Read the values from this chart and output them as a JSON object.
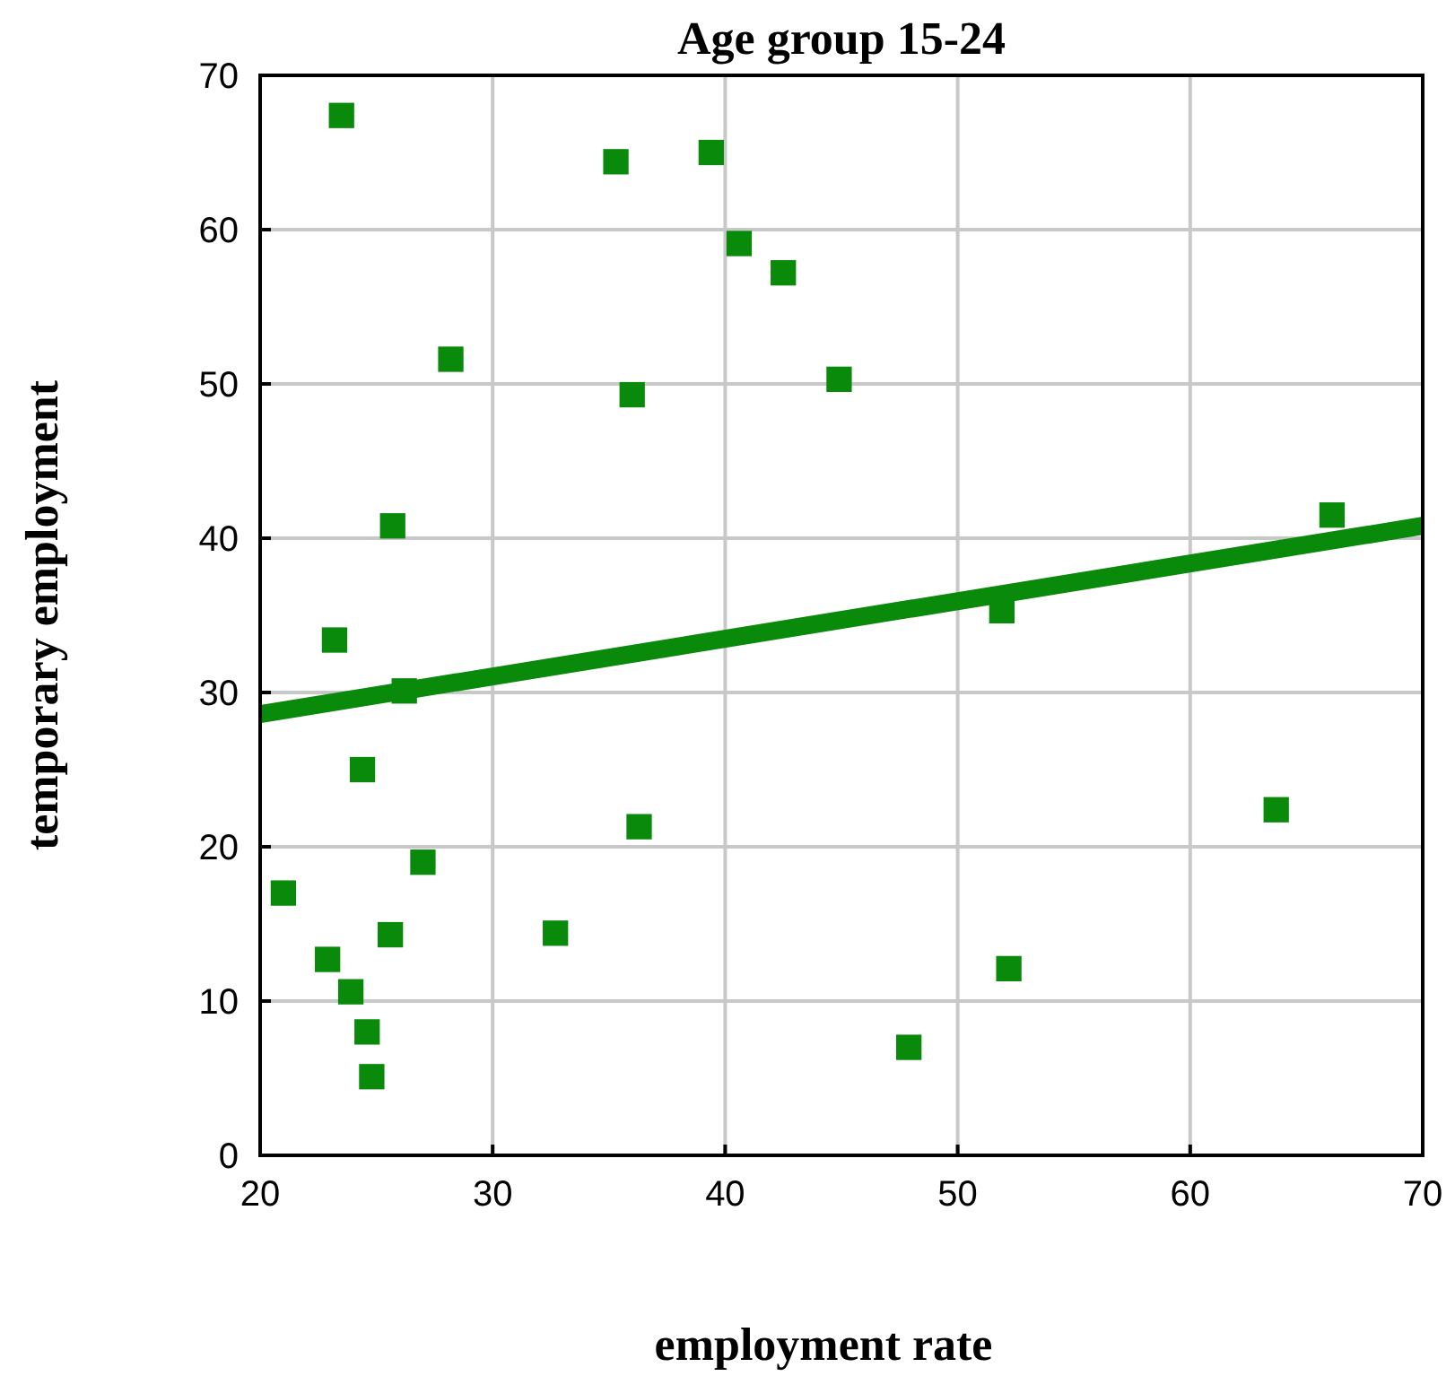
{
  "chart_data": {
    "type": "scatter",
    "title": "Age group 15-24",
    "xlabel": "employment rate",
    "ylabel": "temporary employment",
    "xlim": [
      20,
      70
    ],
    "ylim": [
      0,
      70
    ],
    "xticks": [
      20,
      30,
      40,
      50,
      60,
      70
    ],
    "yticks": [
      0,
      10,
      20,
      30,
      40,
      50,
      60,
      70
    ],
    "grid": true,
    "series": [
      {
        "marker": "square",
        "color": "#0a8a0a",
        "x": [
          21.0,
          22.9,
          23.2,
          23.5,
          23.9,
          24.4,
          24.6,
          24.8,
          25.6,
          25.7,
          26.2,
          27.0,
          28.2,
          32.7,
          35.3,
          36.0,
          36.3,
          39.4,
          40.6,
          42.5,
          44.9,
          47.9,
          51.9,
          52.2,
          63.7,
          66.1
        ],
        "values": [
          17.0,
          12.7,
          33.4,
          67.4,
          10.6,
          25.0,
          8.0,
          5.1,
          14.3,
          40.8,
          30.1,
          19.0,
          51.6,
          14.4,
          64.4,
          49.3,
          21.3,
          65.0,
          59.1,
          57.2,
          50.3,
          7.0,
          35.3,
          12.1,
          22.4,
          41.5
        ]
      },
      {
        "type": "line",
        "color": "#0a8a0a",
        "x": [
          20,
          70
        ],
        "values": [
          28.6,
          40.8
        ]
      }
    ]
  }
}
